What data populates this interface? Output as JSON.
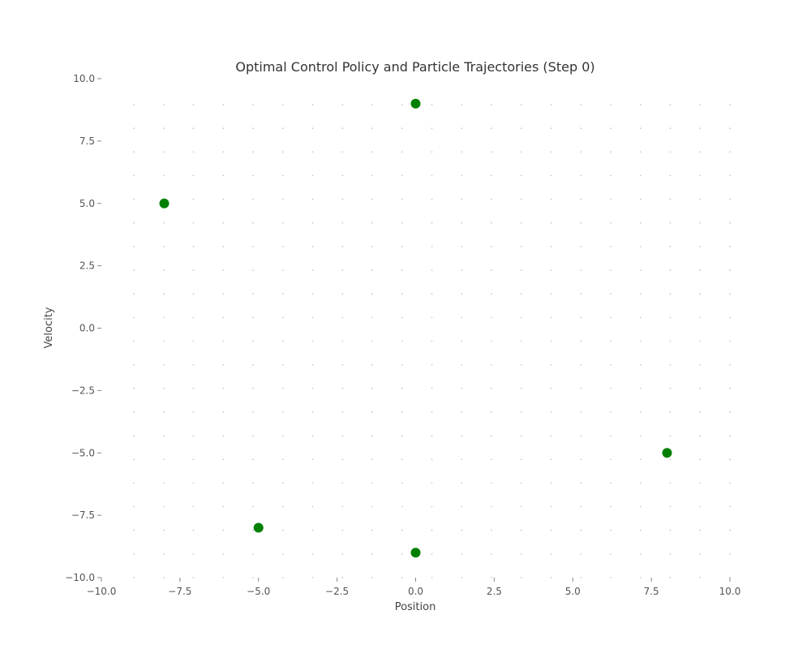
{
  "chart_data": {
    "type": "scatter",
    "title": "Optimal Control Policy and Particle Trajectories (Step 0)",
    "xlabel": "Position",
    "ylabel": "Velocity",
    "xlim": [
      -10,
      10
    ],
    "ylim": [
      -10,
      10
    ],
    "x_ticks": [
      -10.0,
      -7.5,
      -5.0,
      -2.5,
      0.0,
      2.5,
      5.0,
      7.5,
      10.0
    ],
    "y_ticks": [
      -10.0,
      -7.5,
      -5.0,
      -2.5,
      0.0,
      2.5,
      5.0,
      7.5,
      10.0
    ],
    "x_tick_labels": [
      "−10.0",
      "−7.5",
      "−5.0",
      "−2.5",
      "0.0",
      "2.5",
      "5.0",
      "7.5",
      "10.0"
    ],
    "y_tick_labels": [
      "−10.0",
      "−7.5",
      "−5.0",
      "−2.5",
      "0.0",
      "2.5",
      "5.0",
      "7.5",
      "10.0"
    ],
    "grid": "dotted",
    "series": [
      {
        "color": "#008000",
        "points": [
          {
            "x": 0,
            "y": 9
          },
          {
            "x": -8,
            "y": 5
          },
          {
            "x": 8,
            "y": -5
          },
          {
            "x": -5,
            "y": -8
          },
          {
            "x": 0,
            "y": -9
          }
        ]
      }
    ]
  }
}
